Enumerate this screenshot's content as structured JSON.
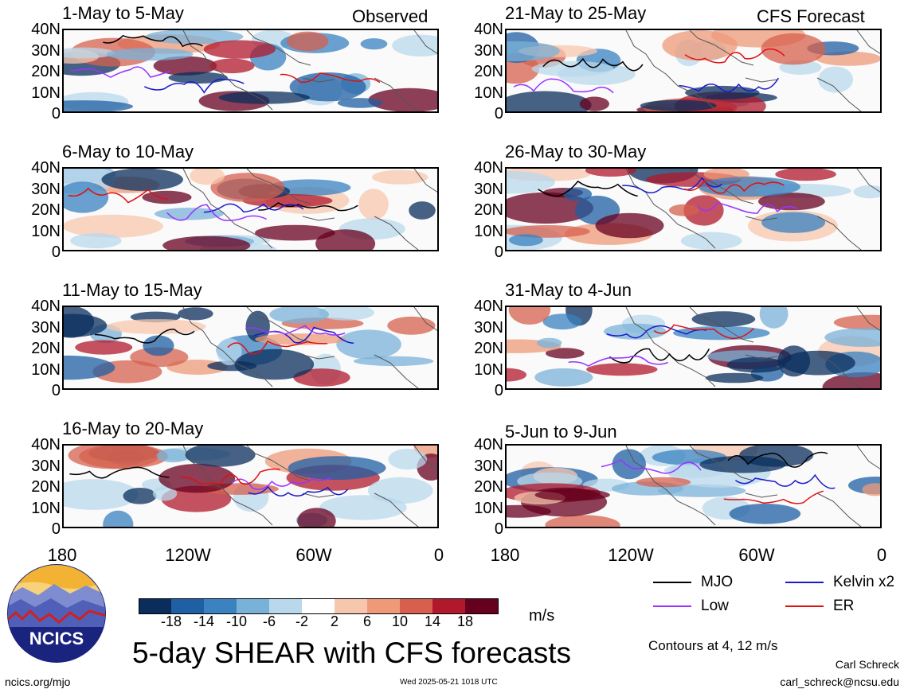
{
  "figure": {
    "title": "5-day SHEAR with CFS forecasts",
    "units": "m/s",
    "contour_note": "Contours at 4, 12 m/s",
    "author": "Carl Schreck",
    "email": "carl_schreck@ncsu.edu",
    "website": "ncics.org/mjo",
    "timestamp": "Wed 2025-05-21 1018 UTC",
    "logo_text": "NCICS",
    "observed_label": "Observed",
    "forecast_label": "CFS Forecast"
  },
  "chart_data": {
    "type": "heatmap",
    "description_variable": "5-day vertical wind shear anomaly",
    "y_ticks": [
      "40N",
      "30N",
      "20N",
      "10N",
      "0"
    ],
    "x_ticks": [
      "180",
      "120W",
      "60W",
      "0"
    ],
    "colorbar": {
      "ticks": [
        "-18",
        "-14",
        "-10",
        "-6",
        "-2",
        "2",
        "6",
        "10",
        "14",
        "18"
      ],
      "colors": [
        "#0a2d5c",
        "#1f5fa3",
        "#3a82c0",
        "#79b2d8",
        "#b9d8ec",
        "#ffffff",
        "#f7c7ad",
        "#ee9a79",
        "#d6604d",
        "#b2182b",
        "#67001f"
      ]
    },
    "panels": [
      {
        "period": "1-May to 5-May",
        "source": "Observed"
      },
      {
        "period": "6-May to 10-May",
        "source": "Observed"
      },
      {
        "period": "11-May to 15-May",
        "source": "Observed"
      },
      {
        "period": "16-May to 20-May",
        "source": "Observed"
      },
      {
        "period": "21-May to 25-May",
        "source": "CFS Forecast"
      },
      {
        "period": "26-May to 30-May",
        "source": "CFS Forecast"
      },
      {
        "period": "31-May to 4-Jun",
        "source": "CFS Forecast"
      },
      {
        "period": "5-Jun to 9-Jun",
        "source": "CFS Forecast"
      }
    ],
    "legend": [
      {
        "label": "MJO",
        "color": "#000000"
      },
      {
        "label": "Kelvin x2",
        "color": "#1a1acc"
      },
      {
        "label": "Low",
        "color": "#9933ff"
      },
      {
        "label": "ER",
        "color": "#e01010"
      }
    ]
  }
}
